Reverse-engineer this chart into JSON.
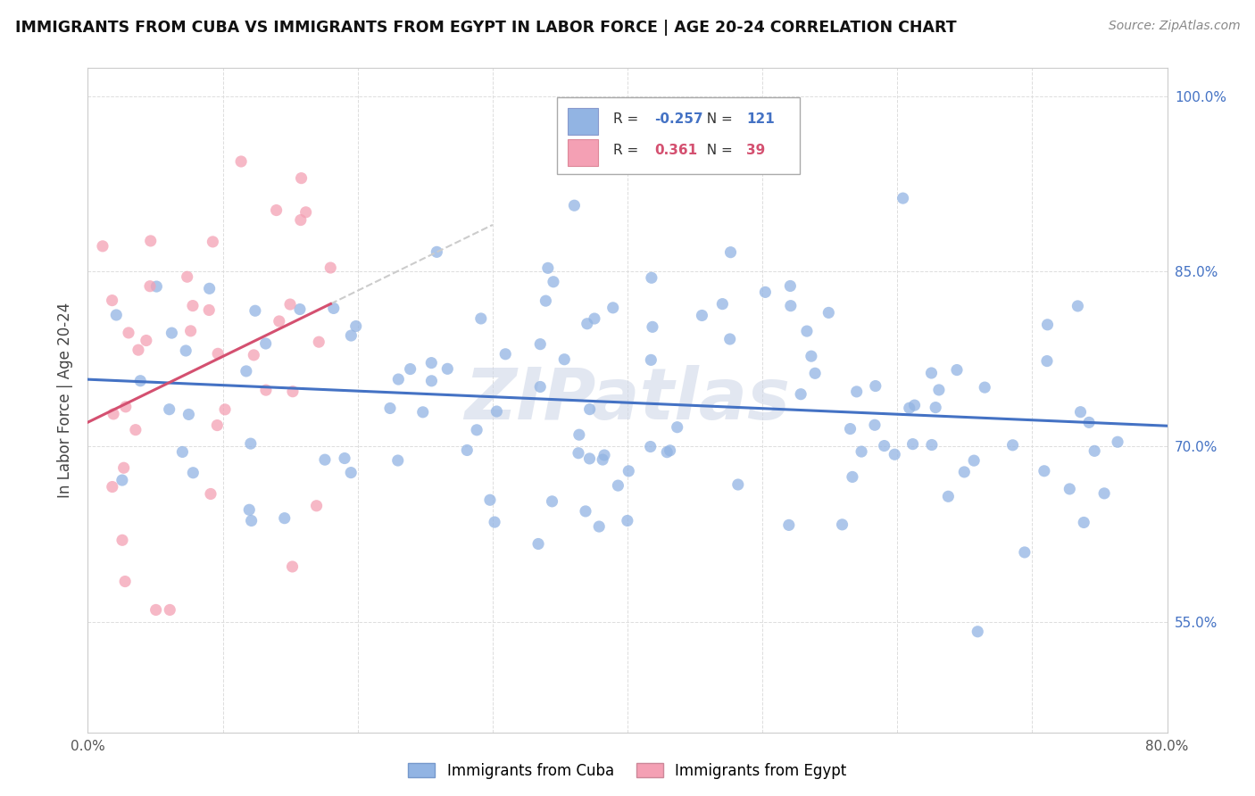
{
  "title": "IMMIGRANTS FROM CUBA VS IMMIGRANTS FROM EGYPT IN LABOR FORCE | AGE 20-24 CORRELATION CHART",
  "source": "Source: ZipAtlas.com",
  "ylabel": "In Labor Force | Age 20-24",
  "xlim": [
    0.0,
    0.8
  ],
  "ylim": [
    0.455,
    1.025
  ],
  "xtick_positions": [
    0.0,
    0.1,
    0.2,
    0.3,
    0.4,
    0.5,
    0.6,
    0.7,
    0.8
  ],
  "xticklabels": [
    "0.0%",
    "",
    "",
    "",
    "",
    "",
    "",
    "",
    "80.0%"
  ],
  "ytick_positions": [
    0.55,
    0.7,
    0.85,
    1.0
  ],
  "yticklabels": [
    "55.0%",
    "70.0%",
    "85.0%",
    "100.0%"
  ],
  "legend_labels": [
    "Immigrants from Cuba",
    "Immigrants from Egypt"
  ],
  "cuba_color": "#92b4e3",
  "egypt_color": "#f4a0b4",
  "cuba_line_color": "#4472c4",
  "egypt_line_color": "#d45070",
  "egypt_dashed_color": "#cccccc",
  "cuba_R": -0.257,
  "cuba_N": 121,
  "egypt_R": 0.361,
  "egypt_N": 39,
  "watermark": "ZIPatlas",
  "legend_R_cuba_color": "#4472c4",
  "legend_R_egypt_color": "#d45070"
}
